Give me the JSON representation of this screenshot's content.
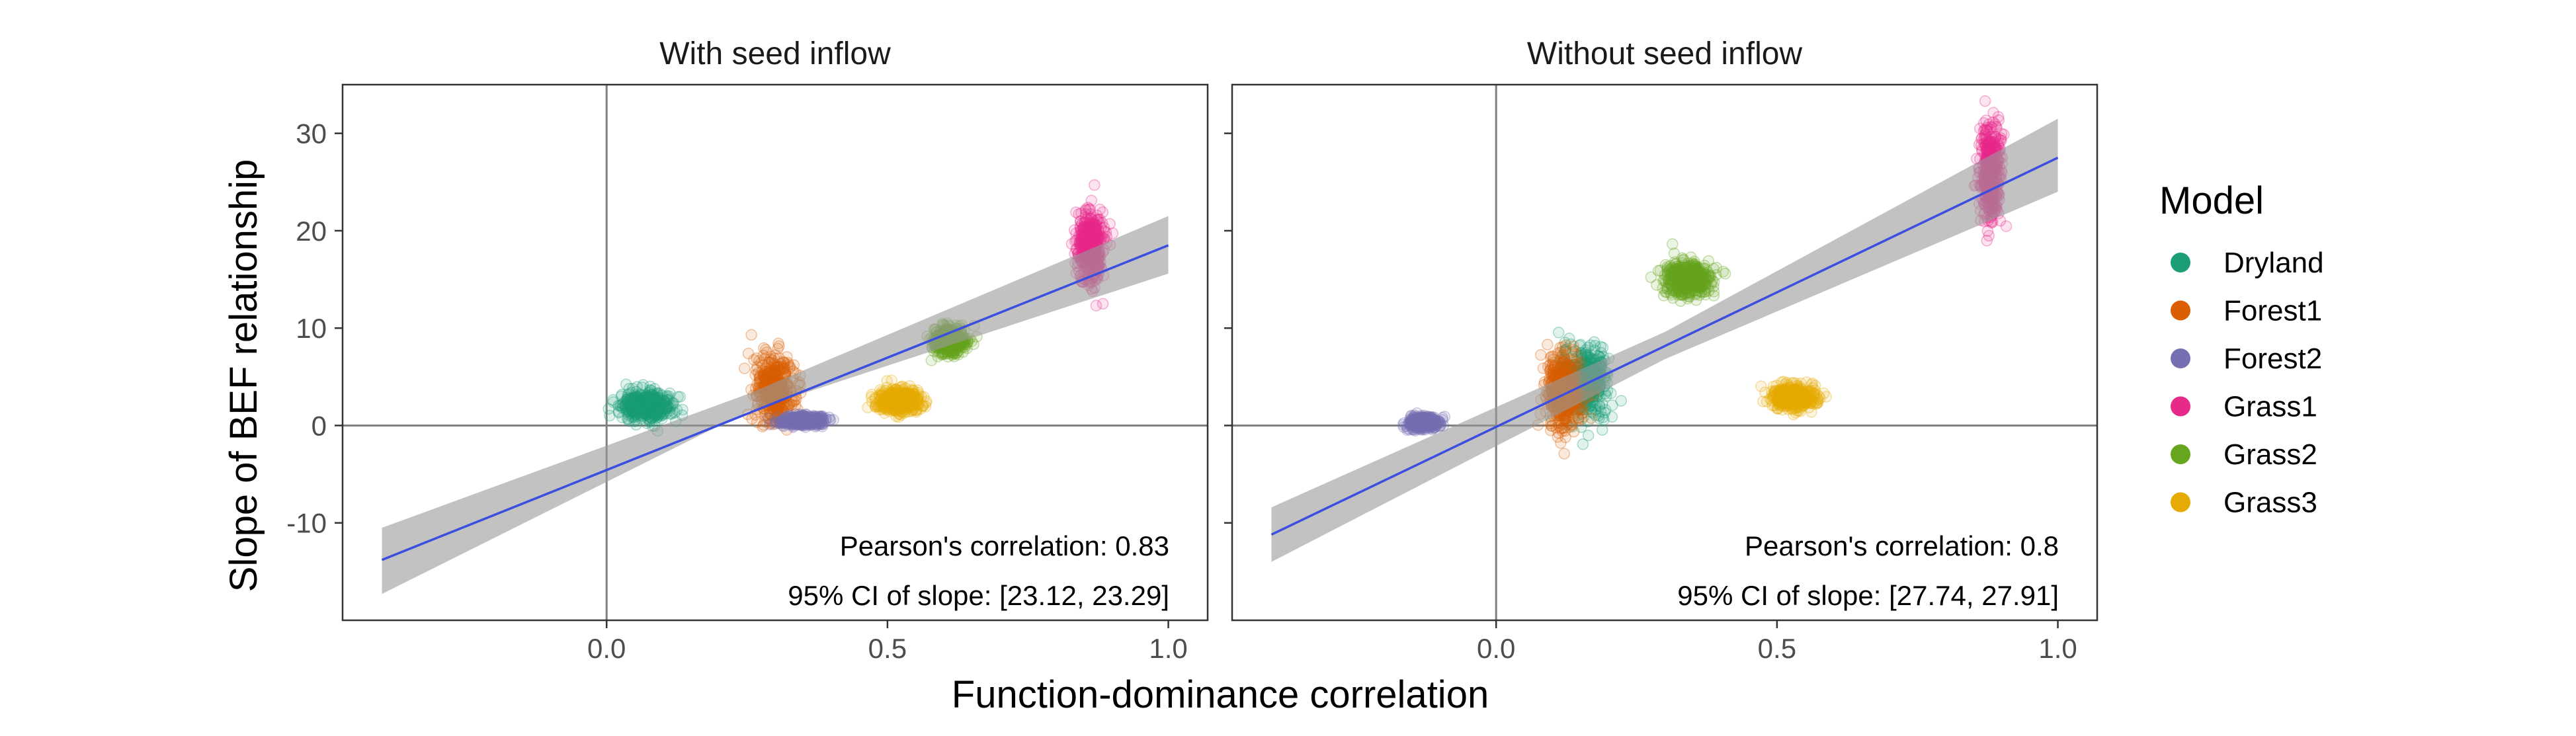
{
  "chart_data": {
    "type": "scatter",
    "xlabel": "Function-dominance correlation",
    "ylabel": "Slope of BEF relationship",
    "xlim": [
      -0.47,
      1.07
    ],
    "ylim": [
      -20,
      35
    ],
    "xticks": [
      0.0,
      0.5,
      1.0
    ],
    "xtick_labels": [
      "0.0",
      "0.5",
      "1.0"
    ],
    "yticks": [
      -10,
      0,
      10,
      20,
      30
    ],
    "ytick_labels": [
      "-10",
      "0",
      "10",
      "20",
      "30"
    ],
    "grid": false,
    "reference_lines": {
      "x": 0,
      "y": 0
    },
    "legend": {
      "title": "Model",
      "placement": "right",
      "entries": [
        {
          "name": "Dryland",
          "color": "#1B9E77"
        },
        {
          "name": "Forest1",
          "color": "#D95F02"
        },
        {
          "name": "Forest2",
          "color": "#7570B3"
        },
        {
          "name": "Grass1",
          "color": "#E7298A"
        },
        {
          "name": "Grass2",
          "color": "#66A61E"
        },
        {
          "name": "Grass3",
          "color": "#E6AB02"
        }
      ]
    },
    "regression_line_color": "#3B4EE0",
    "ci_band_color": "#999999",
    "panels": [
      {
        "title": "With seed inflow",
        "annotations": [
          "Pearson's correlation: 0.83",
          "95% CI of slope: [23.12, 23.29]"
        ],
        "fit": {
          "x": [
            -0.4,
            1.0
          ],
          "y": [
            -13.8,
            18.5
          ]
        },
        "ci_band": {
          "x": [
            -0.4,
            0.25,
            1.0
          ],
          "upper": [
            -10.5,
            3.2,
            21.5
          ],
          "lower": [
            -17.3,
            1.4,
            15.6
          ]
        },
        "clusters": [
          {
            "model": "Dryland",
            "x": 0.07,
            "y": 2.0,
            "sx": 0.022,
            "sy": 0.7
          },
          {
            "model": "Forest1",
            "x": 0.3,
            "y": 3.8,
            "sx": 0.018,
            "sy": 1.7
          },
          {
            "model": "Forest2",
            "x": 0.35,
            "y": 0.5,
            "sx": 0.018,
            "sy": 0.25
          },
          {
            "model": "Grass1",
            "x": 0.86,
            "y": 18.5,
            "sx": 0.012,
            "sy": 1.8
          },
          {
            "model": "Grass2",
            "x": 0.61,
            "y": 8.8,
            "sx": 0.014,
            "sy": 0.7
          },
          {
            "model": "Grass3",
            "x": 0.52,
            "y": 2.6,
            "sx": 0.02,
            "sy": 0.6
          }
        ]
      },
      {
        "title": "Without seed inflow",
        "annotations": [
          "Pearson's correlation: 0.8",
          "95% CI of slope: [27.74, 27.91]"
        ],
        "fit": {
          "x": [
            -0.4,
            1.0
          ],
          "y": [
            -11.2,
            27.5
          ]
        },
        "ci_band": {
          "x": [
            -0.4,
            0.3,
            1.0
          ],
          "upper": [
            -8.4,
            9.6,
            31.5
          ],
          "lower": [
            -14.0,
            6.8,
            24.0
          ]
        },
        "clusters": [
          {
            "model": "Dryland",
            "x": 0.16,
            "y": 4.5,
            "sx": 0.02,
            "sy": 1.9
          },
          {
            "model": "Forest1",
            "x": 0.12,
            "y": 3.6,
            "sx": 0.016,
            "sy": 2.0
          },
          {
            "model": "Forest2",
            "x": -0.13,
            "y": 0.3,
            "sx": 0.013,
            "sy": 0.3
          },
          {
            "model": "Grass1",
            "x": 0.88,
            "y": 26.0,
            "sx": 0.009,
            "sy": 2.4
          },
          {
            "model": "Grass2",
            "x": 0.34,
            "y": 15.0,
            "sx": 0.022,
            "sy": 0.9
          },
          {
            "model": "Grass3",
            "x": 0.53,
            "y": 2.9,
            "sx": 0.02,
            "sy": 0.6
          }
        ]
      }
    ]
  }
}
